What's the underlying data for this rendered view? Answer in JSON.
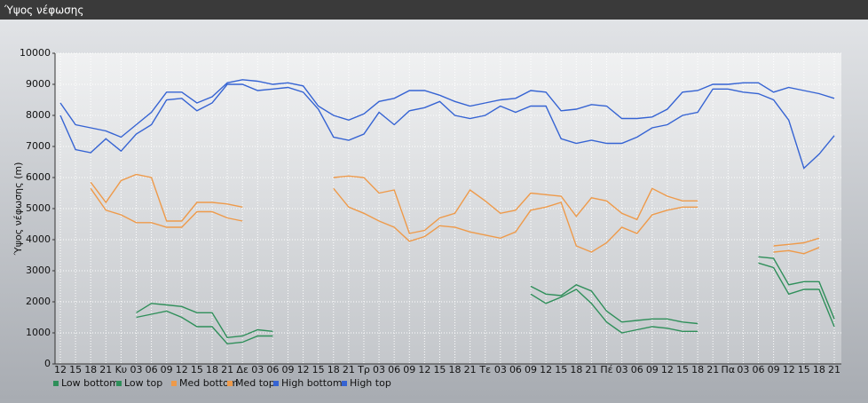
{
  "chart_data": {
    "type": "line",
    "title": "Ύψος νέφωσης",
    "y_label": "Ύψος νέφωσης (m)",
    "categories": [
      "12",
      "15",
      "18",
      "21",
      "Κυ",
      "03",
      "06",
      "09",
      "12",
      "15",
      "18",
      "21",
      "Δε",
      "03",
      "06",
      "09",
      "12",
      "15",
      "18",
      "21",
      "Τρ",
      "03",
      "06",
      "09",
      "12",
      "15",
      "18",
      "21",
      "Τε",
      "03",
      "06",
      "09",
      "12",
      "15",
      "18",
      "21",
      "Πέ",
      "03",
      "06",
      "09",
      "12",
      "15",
      "18",
      "21",
      "Πα",
      "03",
      "06",
      "09",
      "12",
      "15",
      "18",
      "21"
    ],
    "ylim": [
      0,
      10000
    ],
    "yticks": [
      0,
      1000,
      2000,
      3000,
      4000,
      5000,
      6000,
      7000,
      8000,
      9000,
      10000
    ],
    "grid": true,
    "series": [
      {
        "name": "Low bottom",
        "color": "#2f8f5a",
        "values": [
          null,
          null,
          null,
          null,
          null,
          1500,
          1600,
          1700,
          1500,
          1200,
          1200,
          650,
          700,
          900,
          900,
          null,
          null,
          null,
          null,
          null,
          null,
          null,
          null,
          null,
          null,
          null,
          null,
          null,
          null,
          null,
          null,
          2250,
          1950,
          2150,
          2400,
          1950,
          1350,
          1000,
          1100,
          1200,
          1150,
          1050,
          1050,
          null,
          null,
          null,
          3250,
          3100,
          2250,
          2400,
          2400,
          1200
        ]
      },
      {
        "name": "Low top",
        "color": "#2f8f5a",
        "values": [
          null,
          null,
          null,
          null,
          null,
          1650,
          1950,
          1900,
          1850,
          1650,
          1650,
          850,
          900,
          1100,
          1050,
          null,
          null,
          null,
          null,
          null,
          null,
          null,
          null,
          null,
          null,
          null,
          null,
          null,
          null,
          null,
          null,
          2500,
          2250,
          2200,
          2550,
          2350,
          1700,
          1350,
          1400,
          1450,
          1450,
          1350,
          1300,
          null,
          null,
          null,
          3450,
          3400,
          2550,
          2650,
          2650,
          1450
        ]
      },
      {
        "name": "Med bottom",
        "color": "#ee9a4a",
        "values": [
          null,
          null,
          5650,
          4950,
          4800,
          4550,
          4550,
          4400,
          4400,
          4900,
          4900,
          4700,
          4600,
          null,
          null,
          null,
          null,
          null,
          5650,
          5050,
          4850,
          4600,
          4400,
          3950,
          4100,
          4450,
          4400,
          4250,
          4150,
          4050,
          4250,
          4950,
          5050,
          5200,
          3800,
          3600,
          3900,
          4400,
          4200,
          4800,
          4950,
          5050,
          5050,
          null,
          null,
          null,
          null,
          3600,
          3650,
          3550,
          3750,
          null
        ]
      },
      {
        "name": "Med top",
        "color": "#ee9a4a",
        "values": [
          null,
          null,
          5850,
          5200,
          5900,
          6100,
          6000,
          4600,
          4600,
          5200,
          5200,
          5150,
          5050,
          null,
          null,
          null,
          null,
          null,
          6000,
          6050,
          6000,
          5500,
          5600,
          4200,
          4300,
          4700,
          4850,
          5600,
          5250,
          4850,
          4950,
          5500,
          5450,
          5400,
          4750,
          5350,
          5250,
          4850,
          4650,
          5650,
          5400,
          5250,
          5250,
          null,
          null,
          null,
          null,
          3800,
          3850,
          3900,
          4050,
          null
        ]
      },
      {
        "name": "High bottom",
        "color": "#3563d3",
        "values": [
          8000,
          6900,
          6800,
          7250,
          6850,
          7400,
          7700,
          8500,
          8550,
          8150,
          8400,
          9000,
          9000,
          8800,
          8850,
          8900,
          8750,
          8200,
          7300,
          7200,
          7400,
          8100,
          7700,
          8150,
          8250,
          8450,
          8000,
          7900,
          8000,
          8300,
          8100,
          8300,
          8300,
          7250,
          7100,
          7200,
          7100,
          7100,
          7300,
          7600,
          7700,
          8000,
          8100,
          8850,
          8850,
          8750,
          8700,
          8500,
          7850,
          6300,
          6750,
          7350
        ]
      },
      {
        "name": "High top",
        "color": "#3563d3",
        "values": [
          8400,
          7700,
          7600,
          7500,
          7300,
          7700,
          8100,
          8750,
          8750,
          8400,
          8600,
          9050,
          9150,
          9100,
          9000,
          9050,
          8950,
          8300,
          8000,
          7850,
          8050,
          8450,
          8550,
          8800,
          8800,
          8650,
          8450,
          8300,
          8400,
          8500,
          8550,
          8800,
          8750,
          8150,
          8200,
          8350,
          8300,
          7900,
          7900,
          7950,
          8200,
          8750,
          8800,
          9000,
          9000,
          9050,
          9050,
          8750,
          8900,
          8800,
          8700,
          8550
        ]
      }
    ]
  }
}
